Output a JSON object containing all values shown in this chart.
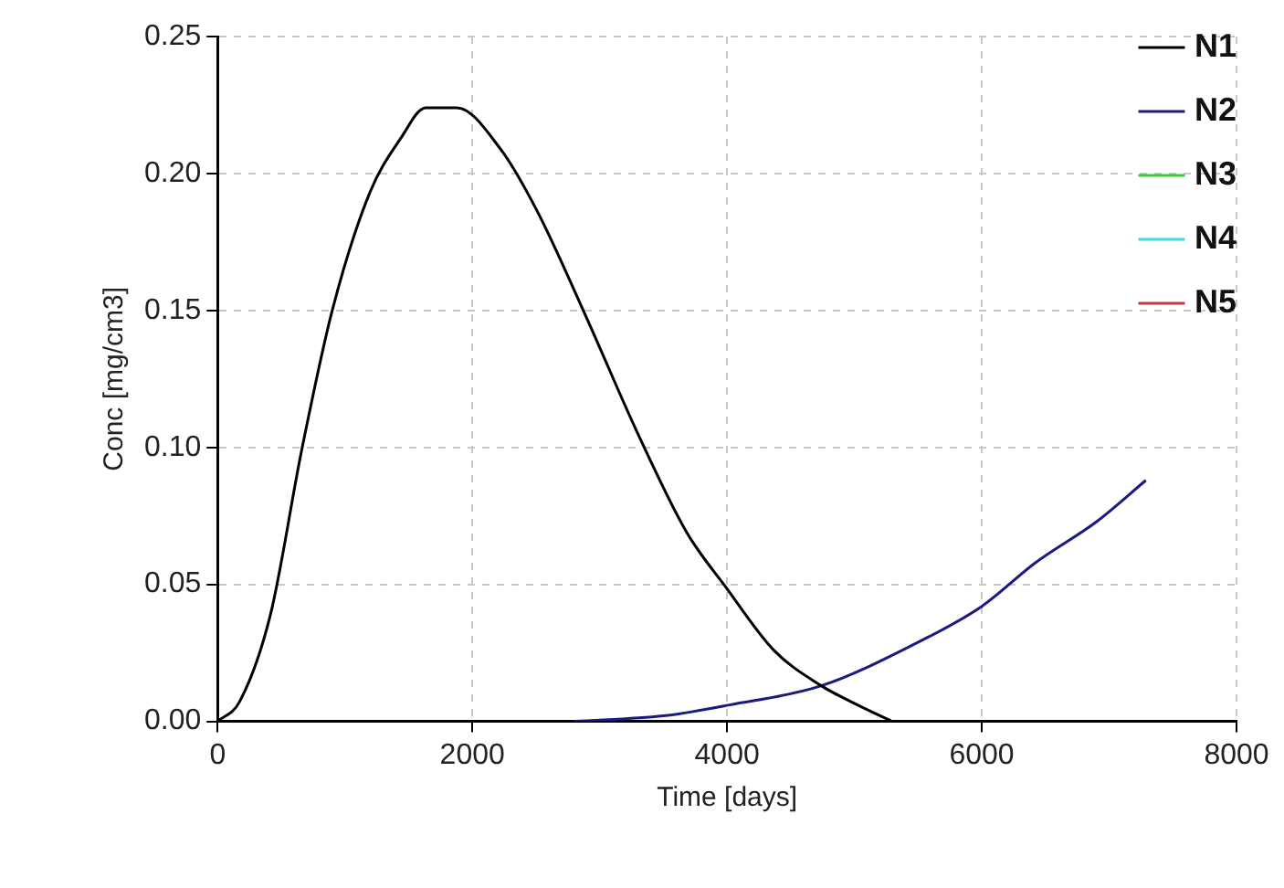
{
  "chart_data": {
    "type": "line",
    "xlabel": "Time [days]",
    "ylabel": "Conc [mg/cm3]",
    "xlim": [
      0,
      8000
    ],
    "xticks": [
      0,
      2000,
      4000,
      6000,
      8000
    ],
    "ylim": [
      0,
      0.25
    ],
    "yticks": [
      {
        "value": 0,
        "label": "0.00"
      },
      {
        "value": 0.05,
        "label": "0.05"
      },
      {
        "value": 0.1,
        "label": "0.10"
      },
      {
        "value": 0.15,
        "label": "0.15"
      },
      {
        "value": 0.2,
        "label": "0.20"
      },
      {
        "value": 0.25,
        "label": "0.25"
      }
    ],
    "grid": true,
    "legend": "top right",
    "marker": "none",
    "line_style": "solid",
    "series": [
      {
        "name": "N1",
        "color": "#000000",
        "x": [
          0,
          170,
          415,
          660,
          900,
          1195,
          1440,
          1634,
          1878,
          2220,
          2512,
          2900,
          3290,
          3683,
          3990,
          4366,
          4740,
          4981,
          5293
        ],
        "values": [
          0,
          0.007,
          0.039,
          0.099,
          0.15,
          0.193,
          0.213,
          0.224,
          0.224,
          0.209,
          0.186,
          0.147,
          0.106,
          0.069,
          0.049,
          0.026,
          0.013,
          0.007,
          0
        ]
      },
      {
        "name": "N2",
        "color": "#1a1a80",
        "x": [
          2800,
          3500,
          4019,
          4740,
          5462,
          6000,
          6423,
          6904,
          7288
        ],
        "values": [
          0,
          0.002,
          0.006,
          0.013,
          0.028,
          0.042,
          0.058,
          0.073,
          0.088
        ]
      },
      {
        "name": "N3",
        "color": "#33cc33"
      },
      {
        "name": "N4",
        "color": "#33dddd"
      },
      {
        "name": "N5",
        "color": "#cc3333"
      }
    ]
  }
}
